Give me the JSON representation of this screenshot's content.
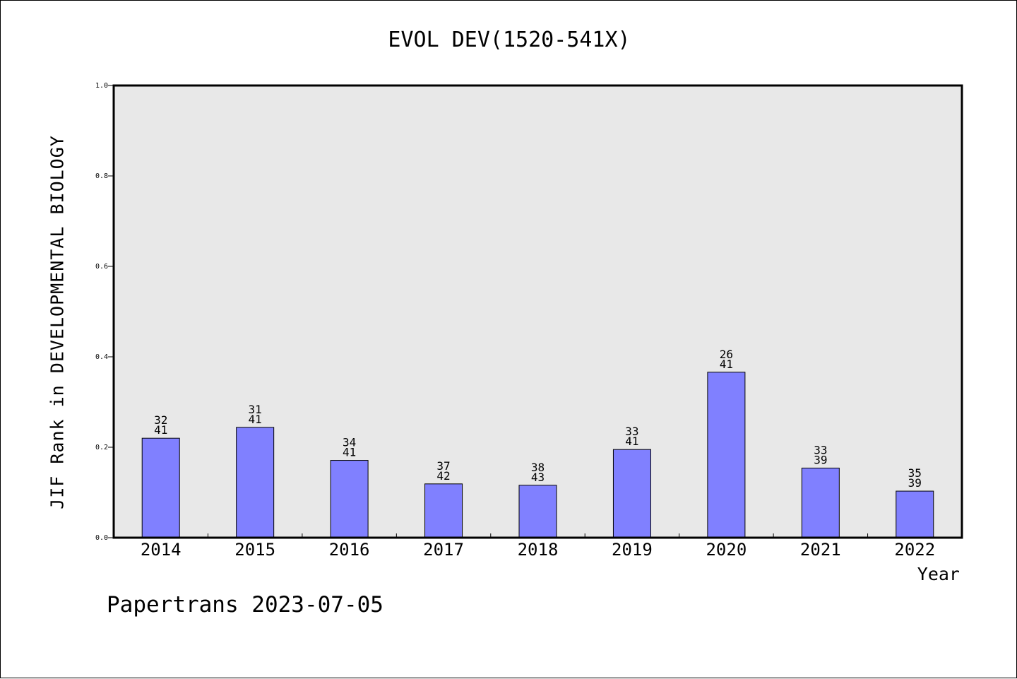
{
  "footer": {
    "text": "Papertrans 2023-07-05"
  },
  "chart_data": {
    "type": "bar",
    "title": "EVOL DEV(1520-541X)",
    "xlabel": "Year",
    "ylabel": "JIF Rank in DEVELOPMENTAL BIOLOGY",
    "ylim": [
      0,
      1.0
    ],
    "yticks": [
      "0.0",
      "0.2",
      "0.4",
      "0.6",
      "0.8",
      "1.0"
    ],
    "categories": [
      "2014",
      "2015",
      "2016",
      "2017",
      "2018",
      "2019",
      "2020",
      "2021",
      "2022"
    ],
    "values": [
      0.22,
      0.244,
      0.171,
      0.119,
      0.116,
      0.195,
      0.366,
      0.154,
      0.103
    ],
    "rank": [
      "32",
      "31",
      "34",
      "37",
      "38",
      "33",
      "26",
      "33",
      "35"
    ],
    "total": [
      "41",
      "41",
      "41",
      "42",
      "43",
      "41",
      "41",
      "39",
      "39"
    ],
    "grid": false,
    "colors": {
      "bar": "#8080ff",
      "plot_background": "#e8e8e8"
    }
  }
}
